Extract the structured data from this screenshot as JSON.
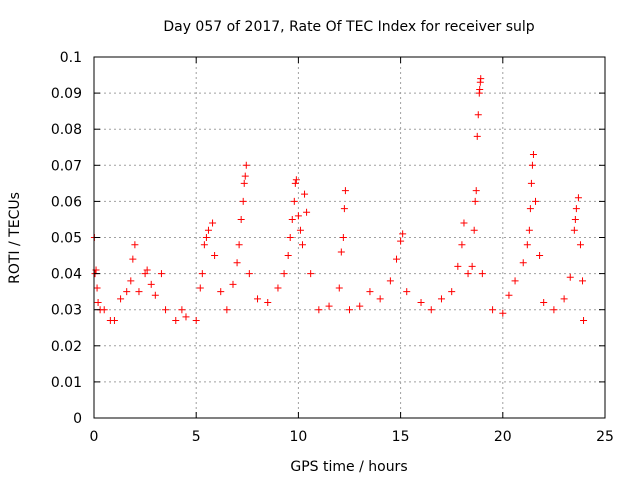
{
  "chart_data": {
    "type": "scatter",
    "title": "Day 057 of 2017, Rate Of TEC Index for receiver sulp",
    "xlabel": "GPS time / hours",
    "ylabel": "ROTI / TECUs",
    "xlim": [
      0,
      25
    ],
    "ylim": [
      0,
      0.1
    ],
    "x_ticks": [
      "0",
      "5",
      "10",
      "15",
      "20",
      "25"
    ],
    "y_ticks": [
      "0",
      "0.01",
      "0.02",
      "0.03",
      "0.04",
      "0.05",
      "0.06",
      "0.07",
      "0.08",
      "0.09",
      "0.1"
    ],
    "grid": true,
    "marker": "plus",
    "color": "#ff0000",
    "series": [
      {
        "name": "",
        "points": [
          [
            0.02,
            0.05
          ],
          [
            0.05,
            0.04
          ],
          [
            0.1,
            0.041
          ],
          [
            0.15,
            0.036
          ],
          [
            0.2,
            0.032
          ],
          [
            0.3,
            0.03
          ],
          [
            0.5,
            0.03
          ],
          [
            0.8,
            0.027
          ],
          [
            1.0,
            0.027
          ],
          [
            1.3,
            0.033
          ],
          [
            1.6,
            0.035
          ],
          [
            1.8,
            0.038
          ],
          [
            1.9,
            0.044
          ],
          [
            2.0,
            0.048
          ],
          [
            2.2,
            0.035
          ],
          [
            2.5,
            0.04
          ],
          [
            2.6,
            0.041
          ],
          [
            2.8,
            0.037
          ],
          [
            3.0,
            0.034
          ],
          [
            3.3,
            0.04
          ],
          [
            3.5,
            0.03
          ],
          [
            4.0,
            0.027
          ],
          [
            4.3,
            0.03
          ],
          [
            4.5,
            0.028
          ],
          [
            5.0,
            0.027
          ],
          [
            5.2,
            0.036
          ],
          [
            5.3,
            0.04
          ],
          [
            5.4,
            0.048
          ],
          [
            5.5,
            0.05
          ],
          [
            5.6,
            0.052
          ],
          [
            5.8,
            0.054
          ],
          [
            5.9,
            0.045
          ],
          [
            6.2,
            0.035
          ],
          [
            6.5,
            0.03
          ],
          [
            6.8,
            0.037
          ],
          [
            7.0,
            0.043
          ],
          [
            7.1,
            0.048
          ],
          [
            7.2,
            0.055
          ],
          [
            7.3,
            0.06
          ],
          [
            7.35,
            0.065
          ],
          [
            7.4,
            0.067
          ],
          [
            7.45,
            0.07
          ],
          [
            7.6,
            0.04
          ],
          [
            8.0,
            0.033
          ],
          [
            8.5,
            0.032
          ],
          [
            9.0,
            0.036
          ],
          [
            9.3,
            0.04
          ],
          [
            9.5,
            0.045
          ],
          [
            9.6,
            0.05
          ],
          [
            9.7,
            0.055
          ],
          [
            9.8,
            0.06
          ],
          [
            9.85,
            0.065
          ],
          [
            9.9,
            0.066
          ],
          [
            10.0,
            0.056
          ],
          [
            10.1,
            0.052
          ],
          [
            10.2,
            0.048
          ],
          [
            10.3,
            0.062
          ],
          [
            10.4,
            0.057
          ],
          [
            10.6,
            0.04
          ],
          [
            11.0,
            0.03
          ],
          [
            11.5,
            0.031
          ],
          [
            12.0,
            0.036
          ],
          [
            12.1,
            0.046
          ],
          [
            12.2,
            0.05
          ],
          [
            12.25,
            0.058
          ],
          [
            12.3,
            0.063
          ],
          [
            12.5,
            0.03
          ],
          [
            13.0,
            0.031
          ],
          [
            13.5,
            0.035
          ],
          [
            14.0,
            0.033
          ],
          [
            14.5,
            0.038
          ],
          [
            14.8,
            0.044
          ],
          [
            15.0,
            0.049
          ],
          [
            15.1,
            0.051
          ],
          [
            15.3,
            0.035
          ],
          [
            16.0,
            0.032
          ],
          [
            16.5,
            0.03
          ],
          [
            17.0,
            0.033
          ],
          [
            17.5,
            0.035
          ],
          [
            17.8,
            0.042
          ],
          [
            18.0,
            0.048
          ],
          [
            18.1,
            0.054
          ],
          [
            18.3,
            0.04
          ],
          [
            18.5,
            0.042
          ],
          [
            18.6,
            0.052
          ],
          [
            18.65,
            0.06
          ],
          [
            18.7,
            0.063
          ],
          [
            18.75,
            0.078
          ],
          [
            18.8,
            0.084
          ],
          [
            18.85,
            0.09
          ],
          [
            18.87,
            0.091
          ],
          [
            18.9,
            0.093
          ],
          [
            18.92,
            0.094
          ],
          [
            19.0,
            0.04
          ],
          [
            19.5,
            0.03
          ],
          [
            20.0,
            0.029
          ],
          [
            20.3,
            0.034
          ],
          [
            20.6,
            0.038
          ],
          [
            21.0,
            0.043
          ],
          [
            21.2,
            0.048
          ],
          [
            21.3,
            0.052
          ],
          [
            21.35,
            0.058
          ],
          [
            21.4,
            0.065
          ],
          [
            21.45,
            0.07
          ],
          [
            21.5,
            0.073
          ],
          [
            21.6,
            0.06
          ],
          [
            21.8,
            0.045
          ],
          [
            22.0,
            0.032
          ],
          [
            22.5,
            0.03
          ],
          [
            23.0,
            0.033
          ],
          [
            23.3,
            0.039
          ],
          [
            23.5,
            0.052
          ],
          [
            23.55,
            0.055
          ],
          [
            23.6,
            0.058
          ],
          [
            23.7,
            0.061
          ],
          [
            23.8,
            0.048
          ],
          [
            23.9,
            0.038
          ],
          [
            23.95,
            0.027
          ]
        ]
      }
    ]
  }
}
